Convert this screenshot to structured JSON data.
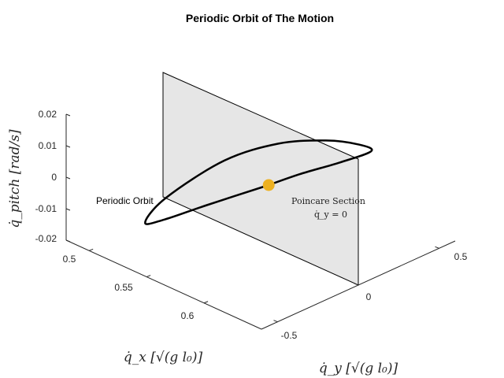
{
  "chart_data": {
    "type": "line",
    "title": "Periodic Orbit of The Motion",
    "xlabel": "q̇_x [√(g l₀)]",
    "ylabel": "q̇_y [√(g l₀)]",
    "zlabel": "q̇_pitch [rad/s]",
    "xlim": [
      0.48,
      0.65
    ],
    "ylim": [
      -0.6,
      0.6
    ],
    "zlim": [
      -0.02,
      0.02
    ],
    "x_ticks": [
      "0.5",
      "0.55",
      "0.6"
    ],
    "y_ticks": [
      "-0.5",
      "0",
      "0.5"
    ],
    "z_ticks": [
      "-0.02",
      "-0.01",
      "0",
      "0.01",
      "0.02"
    ],
    "grid": false,
    "series": [
      {
        "name": "Periodic Orbit",
        "color": "#000000",
        "x": [
          0.572,
          0.542,
          0.522,
          0.515,
          0.522,
          0.542,
          0.565,
          0.588,
          0.606,
          0.612,
          0.6,
          0.585,
          0.572
        ],
        "y": [
          0.0,
          -0.17,
          -0.29,
          -0.36,
          -0.28,
          -0.06,
          0.11,
          0.24,
          0.32,
          0.35,
          0.24,
          0.11,
          0.0
        ],
        "z": [
          -0.0012,
          -0.0086,
          -0.0137,
          -0.0142,
          -0.007,
          0.003,
          0.0082,
          0.01,
          0.0098,
          0.008,
          0.005,
          0.002,
          -0.0012
        ]
      }
    ],
    "point": {
      "x": 0.572,
      "y": 0.0,
      "z": -0.0012,
      "color": "#EDB120"
    },
    "section_plane": {
      "y": 0,
      "color": "#E6E6E6"
    }
  },
  "annotations": {
    "orbit_label": "Periodic Orbit",
    "section_label": "Poincare Section",
    "section_eq": "q̇_y = 0"
  }
}
